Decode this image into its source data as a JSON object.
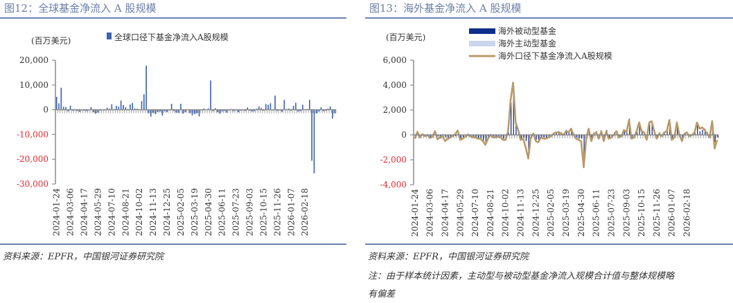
{
  "left": {
    "title": "图12：全球基金净流入 A 股规模",
    "unit": "(百万美元)",
    "legend": [
      {
        "label": "全球口径下基金净流入A股规模",
        "color": "#3d64ad",
        "kind": "bar"
      }
    ],
    "source": "资料来源：EPFR，中国银河证券研究院"
  },
  "right": {
    "title": "图13：海外基金净流入 A 股规模",
    "unit": "(百万美元)",
    "legend": [
      {
        "label": "海外被动型基金",
        "color": "#0f2d8a",
        "kind": "bar"
      },
      {
        "label": "海外主动型基金",
        "color": "#c9d6ee",
        "kind": "bar"
      },
      {
        "label": "海外口径下基金净流入A股规模",
        "color": "#b89a6a",
        "kind": "line"
      }
    ],
    "source": "资料来源：EPFR，中国银河证券研究院",
    "note_line1": "注：由于样本统计因素，主动型与被动型基金净流入规模合计值与整体规模略",
    "note_line2": "有偏差"
  },
  "chart_data": [
    {
      "type": "bar",
      "title": "图12：全球基金净流入 A 股规模",
      "ylabel": "(百万美元)",
      "ylim": [
        -30000,
        20000
      ],
      "yticks": [
        "20,000",
        "10,000",
        "0",
        "-10,000",
        "-20,000",
        "-30,000"
      ],
      "negative_tick_color": "#e8252b",
      "x_tick_labels": [
        "2024-01-24",
        "2024-03-06",
        "2024-04-17",
        "2024-05-29",
        "2024-07-10",
        "2024-08-21",
        "2024-10-02",
        "2024-11-13",
        "2024-12-25",
        "2025-02-05",
        "2025-03-19",
        "2025-04-30",
        "2025-06-11",
        "2025-07-23",
        "2025-09-03",
        "2025-10-15",
        "2025-11-26",
        "2026-01-07",
        "2026-02-18"
      ],
      "x_tick_every": 6,
      "series": [
        {
          "name": "全球口径下基金净流入A股规模",
          "color": "#3d64ad",
          "values": [
            5200,
            2600,
            8900,
            1200,
            1100,
            -600,
            1600,
            -400,
            -300,
            -500,
            -800,
            -300,
            -400,
            -600,
            -300,
            1100,
            -1000,
            -1600,
            -1200,
            -400,
            -200,
            -300,
            800,
            400,
            2200,
            300,
            1600,
            1200,
            3700,
            1900,
            1000,
            300,
            2100,
            2700,
            500,
            400,
            200,
            3500,
            6200,
            17800,
            -1400,
            -2800,
            -1300,
            -1800,
            -900,
            -700,
            -2400,
            -600,
            -900,
            -300,
            2400,
            -500,
            -1200,
            -1300,
            2400,
            -1600,
            -1000,
            200,
            -1400,
            -2300,
            -1800,
            -1500,
            -2700,
            -300,
            500,
            200,
            500,
            11800,
            -600,
            600,
            -1000,
            -1600,
            -700,
            -500,
            -1200,
            -300,
            300,
            -600,
            -300,
            -1000,
            -400,
            -300,
            -500,
            900,
            -400,
            -700,
            -600,
            400,
            1300,
            700,
            -400,
            2300,
            2000,
            2600,
            -300,
            5700,
            -500,
            -300,
            -800,
            4000,
            300,
            500,
            -400,
            1600,
            2800,
            -700,
            -600,
            2000,
            200,
            300,
            4000,
            -20600,
            -25700,
            -1500,
            -700,
            1000,
            -600,
            -400,
            500,
            1300,
            -3600,
            -1500
          ]
        }
      ]
    },
    {
      "type": "bar+line",
      "title": "图13：海外基金净流入 A 股规模",
      "ylabel": "(百万美元)",
      "ylim": [
        -4000,
        6000
      ],
      "yticks": [
        "6,000",
        "4,000",
        "2,000",
        "0",
        "-2,000",
        "-4,000"
      ],
      "negative_tick_color": "#e8252b",
      "x_tick_labels": [
        "2024-01-24",
        "2024-03-06",
        "2024-04-17",
        "2024-05-29",
        "2024-07-10",
        "2024-08-21",
        "2024-10-02",
        "2024-11-13",
        "2024-12-25",
        "2025-02-05",
        "2025-03-19",
        "2025-04-30",
        "2025-06-11",
        "2025-07-23",
        "2025-09-03",
        "2025-10-15",
        "2025-11-26",
        "2026-01-07",
        "2026-02-18"
      ],
      "x_tick_every": 6,
      "series": [
        {
          "name": "海外被动型基金",
          "color": "#0f2d8a",
          "kind": "bar",
          "values": [
            -200,
            150,
            -100,
            100,
            -50,
            50,
            -200,
            -100,
            300,
            -100,
            -300,
            50,
            -200,
            -400,
            -200,
            -100,
            -100,
            300,
            -300,
            -200,
            -100,
            100,
            -100,
            -200,
            -200,
            -300,
            -300,
            -500,
            -700,
            -300,
            50,
            -100,
            -150,
            -100,
            -150,
            -300,
            -350,
            200,
            2600,
            4200,
            1000,
            400,
            -300,
            -200,
            -500,
            -1600,
            -100,
            150,
            -400,
            -500,
            -200,
            -200,
            -300,
            -100,
            -100,
            100,
            200,
            300,
            200,
            100,
            400,
            200,
            500,
            100,
            -200,
            -300,
            -300,
            -2500,
            -300,
            500,
            -300,
            100,
            300,
            -200,
            200,
            -400,
            400,
            -300,
            -100,
            200,
            300,
            -200,
            -100,
            400,
            200,
            1300,
            -200,
            -100,
            300,
            900,
            300,
            200,
            -300,
            900,
            1000,
            400,
            -200,
            200,
            -100,
            100,
            300,
            1200,
            -300,
            -100,
            1000,
            100,
            -300,
            100,
            200,
            -100,
            100,
            300,
            1000,
            300,
            400,
            500,
            200,
            -100,
            1000,
            -600,
            -200
          ]
        },
        {
          "name": "海外主动型基金",
          "color": "#c9d6ee",
          "kind": "bar",
          "values": [
            -80,
            50,
            -60,
            -40,
            -40,
            -40,
            -60,
            -60,
            40,
            -60,
            -80,
            -40,
            -60,
            -80,
            -60,
            -40,
            -40,
            40,
            -60,
            -60,
            -40,
            -40,
            -60,
            -60,
            -60,
            -80,
            -80,
            -80,
            -100,
            -60,
            -40,
            -60,
            -60,
            -60,
            -60,
            -80,
            -60,
            -40,
            80,
            80,
            40,
            -40,
            -60,
            -60,
            -80,
            -100,
            -60,
            -40,
            -60,
            -80,
            -60,
            -60,
            -60,
            -40,
            -40,
            -40,
            -40,
            40,
            -40,
            -40,
            40,
            -40,
            40,
            -40,
            -60,
            -60,
            -60,
            -100,
            -60,
            40,
            -60,
            -40,
            40,
            -60,
            -40,
            -60,
            40,
            -60,
            -40,
            -40,
            40,
            -60,
            -40,
            40,
            -40,
            60,
            -40,
            -40,
            40,
            40,
            -40,
            -40,
            -60,
            40,
            40,
            -40,
            -60,
            -40,
            -40,
            -40,
            -40,
            40,
            -60,
            -40,
            40,
            -40,
            -60,
            -40,
            -40,
            -40,
            -40,
            -40,
            40,
            -40,
            -40,
            40,
            -40,
            -40,
            40,
            -100,
            -60
          ]
        },
        {
          "name": "海外口径下基金净流入A股规模",
          "color": "#b89a6a",
          "kind": "line",
          "values": [
            -300,
            250,
            -200,
            50,
            -100,
            0,
            -250,
            -150,
            300,
            -350,
            -200,
            -100,
            -500,
            -300,
            -200,
            -100,
            50,
            350,
            -400,
            -300,
            -150,
            0,
            -100,
            -200,
            -200,
            -300,
            -300,
            -500,
            -800,
            -300,
            0,
            -200,
            -200,
            -150,
            -200,
            -400,
            -400,
            300,
            2800,
            4200,
            1000,
            400,
            -400,
            -300,
            -1000,
            -1900,
            -200,
            100,
            -500,
            -600,
            -200,
            -300,
            -300,
            -200,
            -100,
            100,
            200,
            200,
            100,
            0,
            300,
            200,
            500,
            0,
            -300,
            -400,
            -500,
            -2600,
            -300,
            500,
            -500,
            100,
            200,
            -300,
            300,
            -500,
            300,
            -300,
            -200,
            0,
            300,
            -200,
            -100,
            400,
            200,
            1200,
            -300,
            -200,
            300,
            1000,
            300,
            200,
            -400,
            1000,
            1100,
            300,
            -300,
            100,
            -100,
            200,
            300,
            1200,
            -400,
            -200,
            1000,
            0,
            -500,
            100,
            200,
            -100,
            0,
            200,
            1000,
            500,
            600,
            400,
            100,
            -200,
            1100,
            -1100,
            -400
          ]
        }
      ]
    }
  ]
}
